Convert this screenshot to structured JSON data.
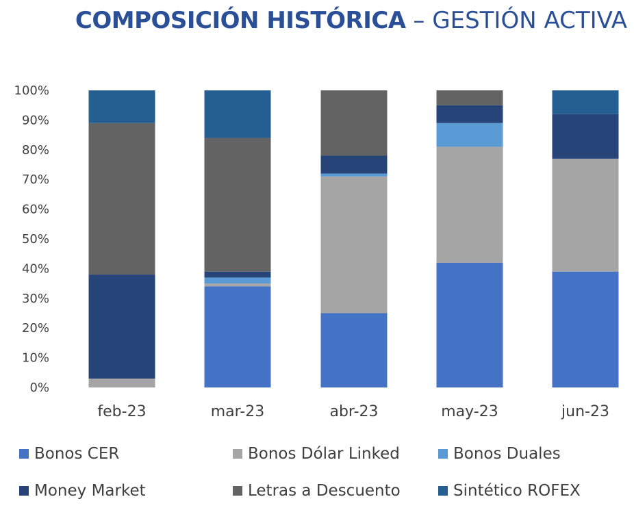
{
  "title": {
    "bold": "COMPOSICIÓN HISTÓRICA",
    "light": " – GESTIÓN ACTIVA"
  },
  "chart_data": {
    "type": "bar",
    "stacked": true,
    "categories": [
      "feb-23",
      "mar-23",
      "abr-23",
      "may-23",
      "jun-23"
    ],
    "y_ticks": [
      "0%",
      "10%",
      "20%",
      "30%",
      "40%",
      "50%",
      "60%",
      "70%",
      "80%",
      "90%",
      "100%"
    ],
    "ylim": [
      0,
      100
    ],
    "grid": false,
    "legend_position": "bottom",
    "series": [
      {
        "name": "Bonos CER",
        "color": "#4472c4",
        "values": [
          0,
          34,
          25,
          42,
          39
        ]
      },
      {
        "name": "Bonos Dólar Linked",
        "color": "#a5a5a5",
        "values": [
          3,
          1,
          46,
          39,
          38
        ]
      },
      {
        "name": "Bonos Duales",
        "color": "#5b9bd5",
        "values": [
          0,
          2,
          1,
          8,
          0
        ]
      },
      {
        "name": "Money Market",
        "color": "#264478",
        "values": [
          35,
          2,
          6,
          6,
          15
        ]
      },
      {
        "name": "Letras a Descuento",
        "color": "#636363",
        "values": [
          51,
          45,
          22,
          5,
          0
        ]
      },
      {
        "name": "Sintético ROFEX",
        "color": "#255e91",
        "values": [
          11,
          16,
          0,
          0,
          8
        ]
      }
    ]
  }
}
